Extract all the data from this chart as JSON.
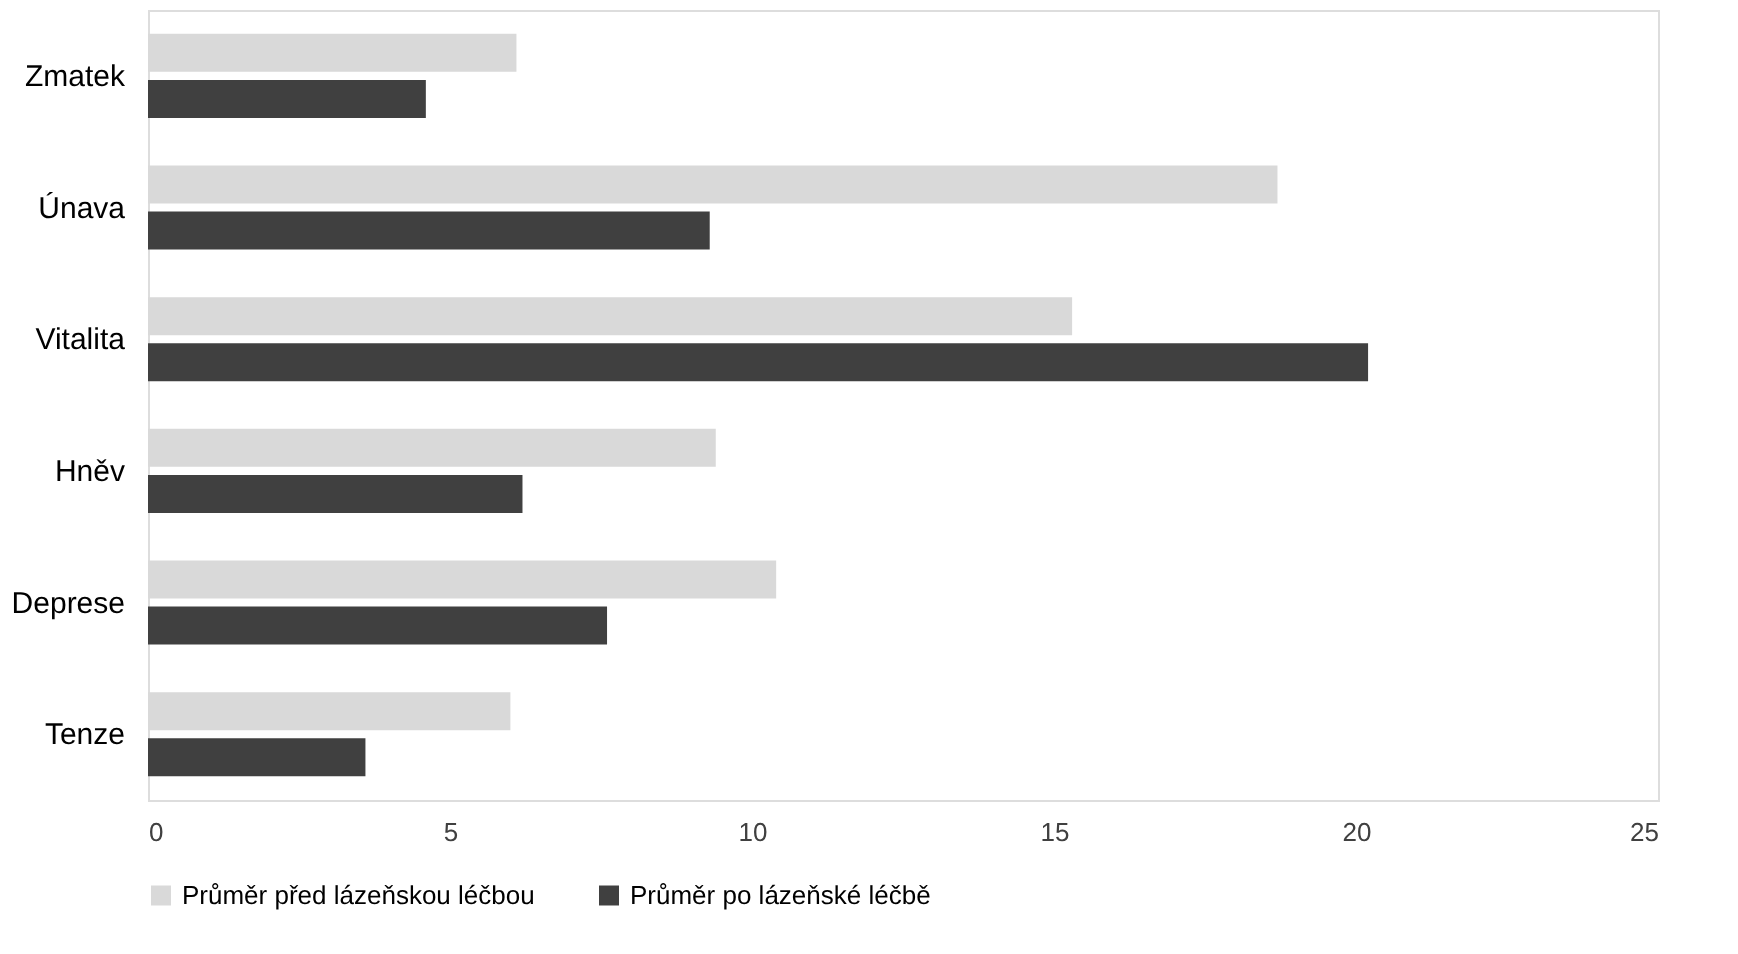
{
  "chart_data": {
    "type": "bar",
    "orientation": "horizontal",
    "categories": [
      "Zmatek",
      "Únava",
      "Vitalita",
      "Hněv",
      "Deprese",
      "Tenze"
    ],
    "series": [
      {
        "name": "Průměr před lázeňskou léčbou",
        "color": "#d9d9d9",
        "values": [
          6.1,
          18.7,
          15.3,
          9.4,
          10.4,
          6.0
        ]
      },
      {
        "name": "Průměr po lázeňské léčbě",
        "color": "#404040",
        "values": [
          4.6,
          9.3,
          20.2,
          6.2,
          7.6,
          3.6
        ]
      }
    ],
    "xlim": [
      0,
      25
    ],
    "xticks": [
      0,
      5,
      10,
      15,
      20,
      25
    ],
    "grid": false,
    "legend": "bottom"
  }
}
